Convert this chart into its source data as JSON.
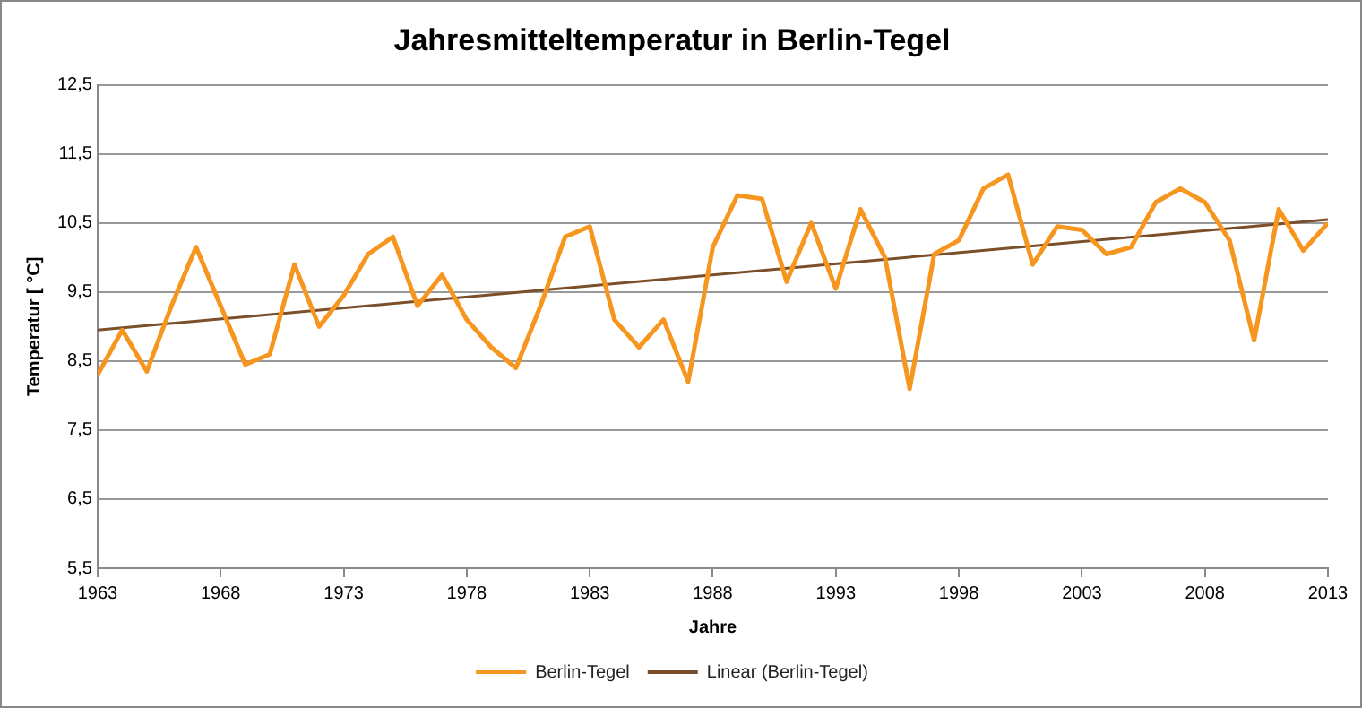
{
  "chart_data": {
    "type": "line",
    "title": "Jahresmitteltemperatur in Berlin-Tegel",
    "xlabel": "Jahre",
    "ylabel": "Temperatur [ °C]",
    "x": [
      1963,
      1964,
      1965,
      1966,
      1967,
      1968,
      1969,
      1970,
      1971,
      1972,
      1973,
      1974,
      1975,
      1976,
      1977,
      1978,
      1979,
      1980,
      1981,
      1982,
      1983,
      1984,
      1985,
      1986,
      1987,
      1988,
      1989,
      1990,
      1991,
      1992,
      1993,
      1994,
      1995,
      1996,
      1997,
      1998,
      1999,
      2000,
      2001,
      2002,
      2003,
      2004,
      2005,
      2006,
      2007,
      2008,
      2009,
      2010,
      2011,
      2012,
      2013
    ],
    "series": [
      {
        "name": "Berlin-Tegel",
        "color": "#f7961e",
        "values": [
          8.3,
          8.95,
          8.35,
          9.3,
          10.15,
          9.3,
          8.45,
          8.6,
          9.9,
          9.0,
          9.45,
          10.05,
          10.3,
          9.3,
          9.75,
          9.1,
          8.7,
          8.4,
          9.3,
          10.3,
          10.45,
          9.1,
          8.7,
          9.1,
          8.2,
          10.15,
          10.9,
          10.85,
          9.65,
          10.5,
          9.55,
          10.7,
          10.0,
          8.1,
          10.05,
          10.25,
          11.0,
          11.2,
          9.9,
          10.45,
          10.4,
          10.05,
          10.15,
          10.8,
          11.0,
          10.8,
          10.25,
          8.8,
          10.7,
          10.1,
          10.5
        ]
      },
      {
        "name": "Linear (Berlin-Tegel)",
        "color": "#7a4f2a",
        "type": "line",
        "x": [
          1963,
          2013
        ],
        "values": [
          8.95,
          10.55
        ]
      }
    ],
    "xlim": [
      1963,
      2013
    ],
    "xticks": [
      1963,
      1968,
      1973,
      1978,
      1983,
      1988,
      1993,
      1998,
      2003,
      2008,
      2013
    ],
    "ylim": [
      5.5,
      12.5
    ],
    "yticks": [
      {
        "value": 5.5,
        "label": "5,5"
      },
      {
        "value": 6.5,
        "label": "6,5"
      },
      {
        "value": 7.5,
        "label": "7,5"
      },
      {
        "value": 8.5,
        "label": "8,5"
      },
      {
        "value": 9.5,
        "label": "9,5"
      },
      {
        "value": 10.5,
        "label": "10,5"
      },
      {
        "value": 11.5,
        "label": "11,5"
      },
      {
        "value": 12.5,
        "label": "12,5"
      }
    ],
    "grid": "y",
    "legend": "bottom",
    "marker": "none",
    "line_style": "solid"
  }
}
